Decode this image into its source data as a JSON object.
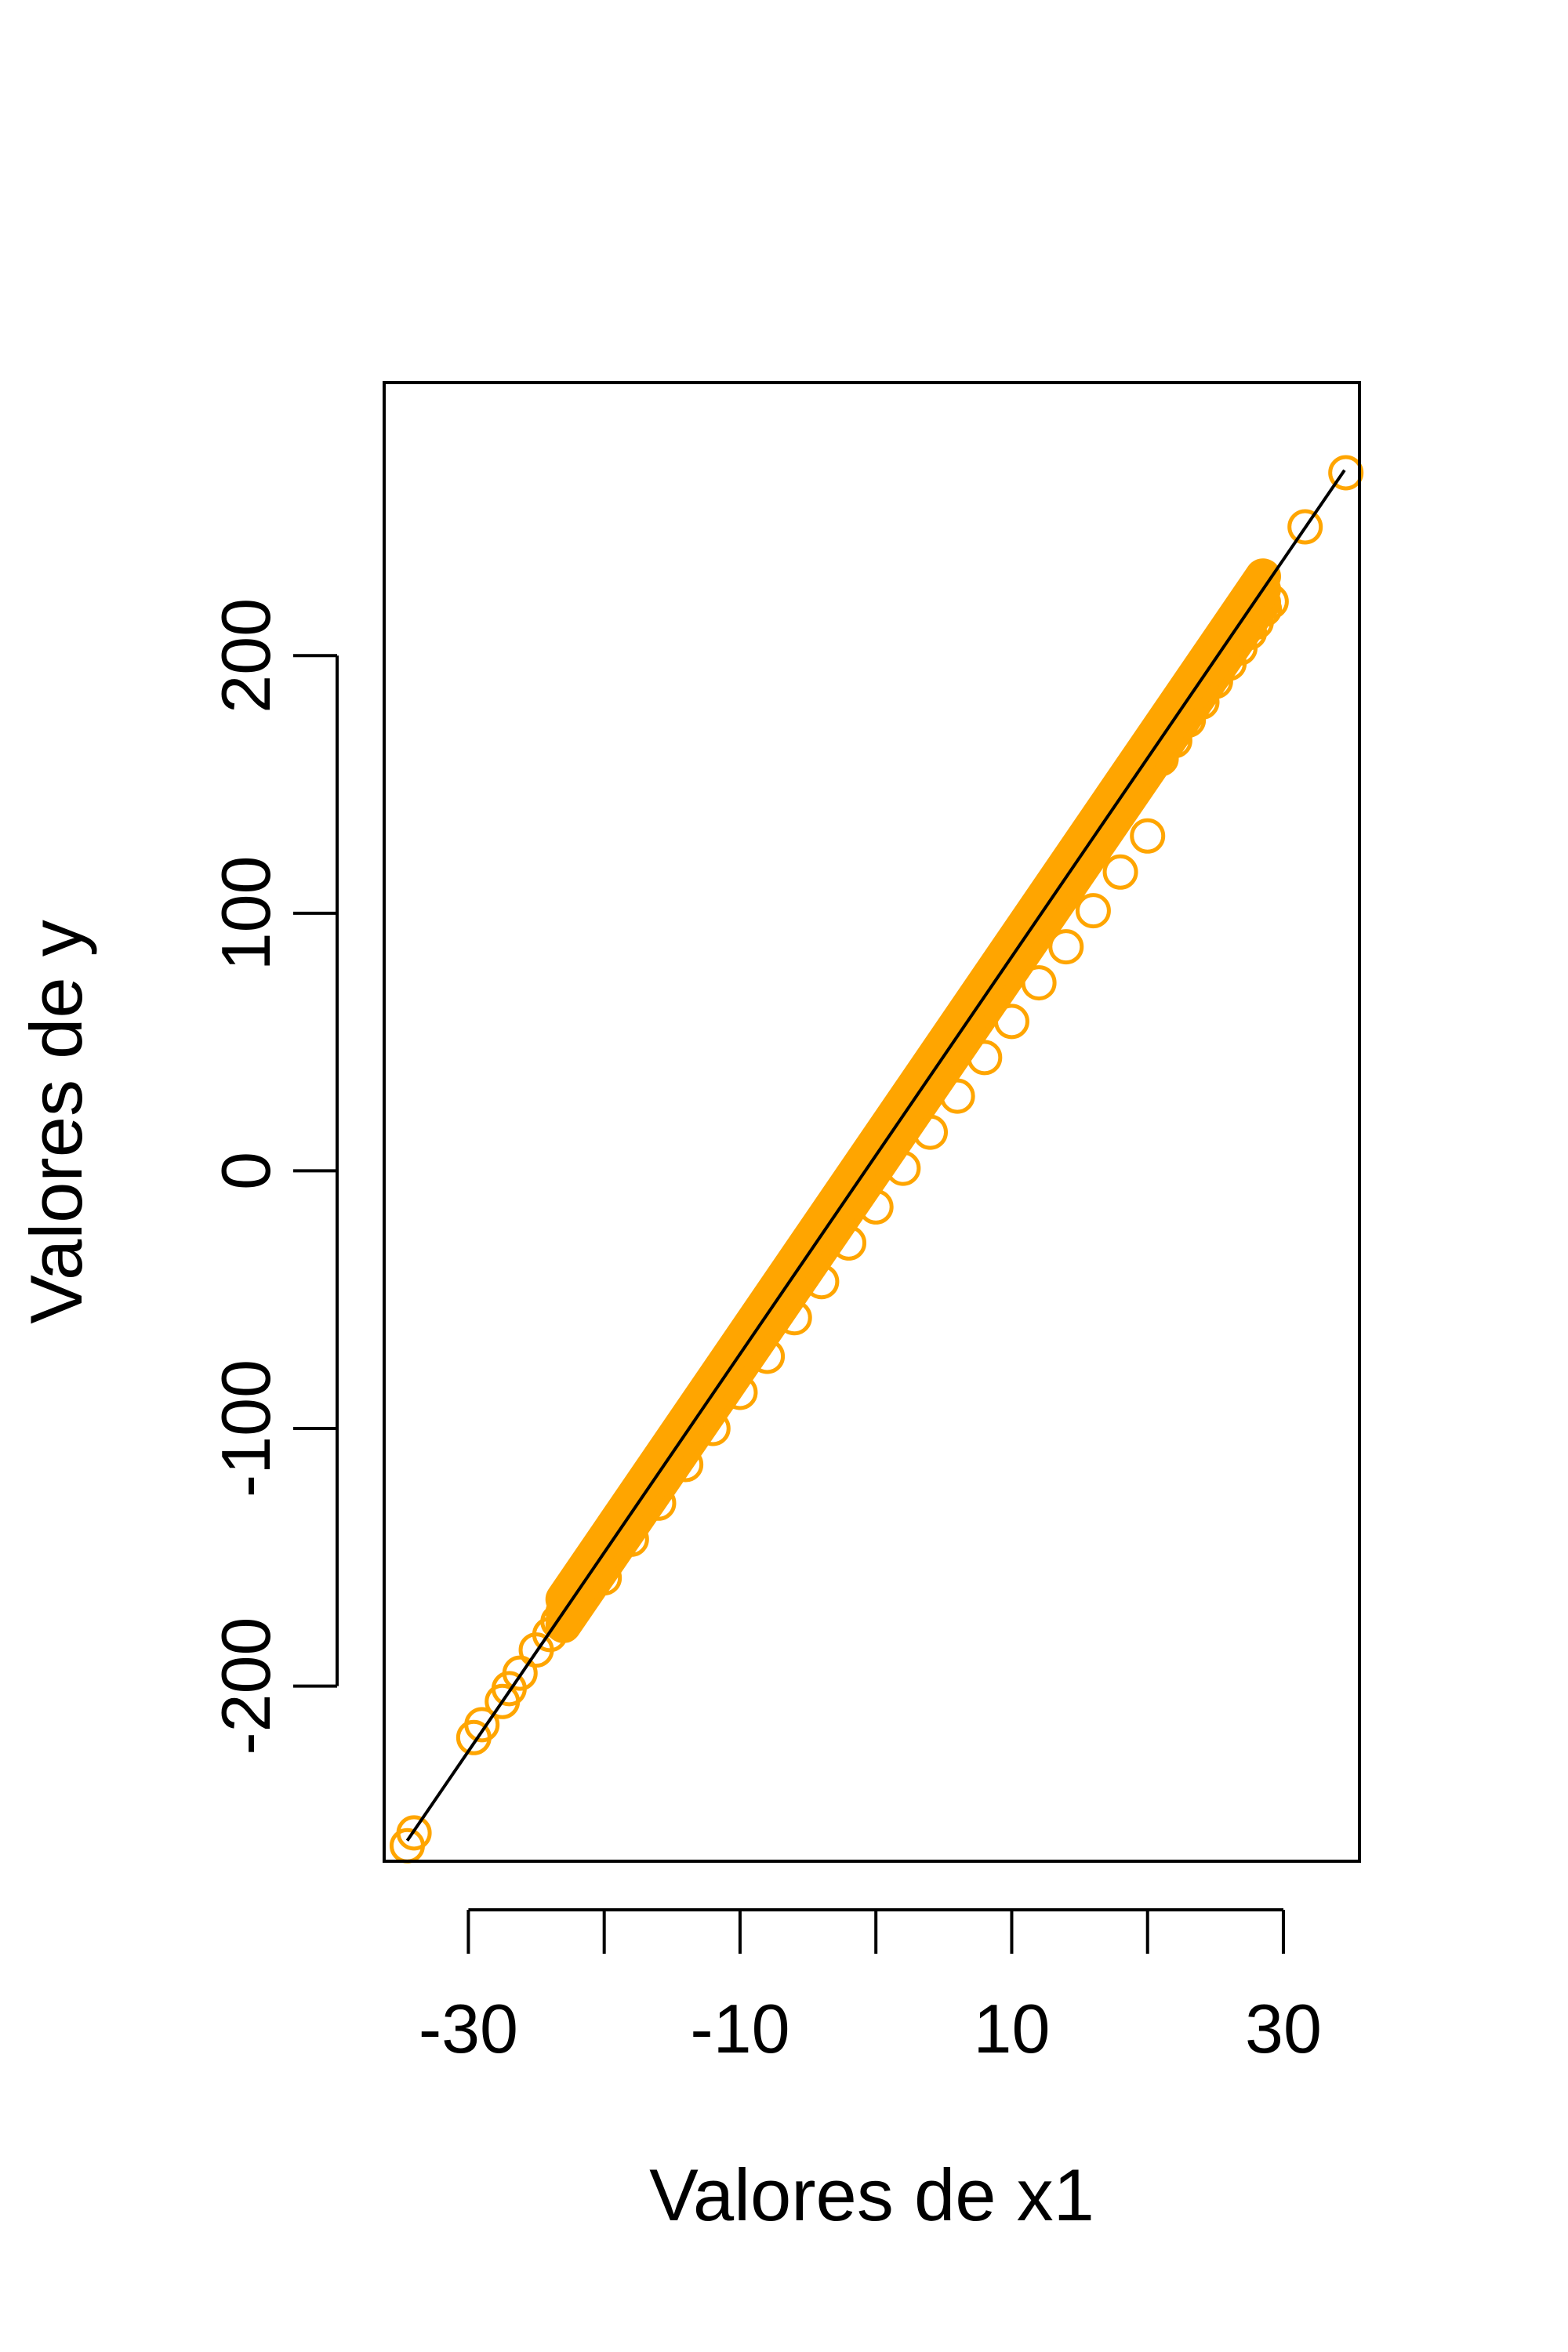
{
  "chart_data": {
    "type": "scatter",
    "title": "",
    "xlabel": "Valores de x1",
    "ylabel": "Valores de y",
    "xlim": [
      -36.2,
      35.6
    ],
    "ylim": [
      -268,
      306
    ],
    "x_ticks": [
      -30,
      -20,
      -10,
      0,
      10,
      20,
      30
    ],
    "x_tick_labels": [
      "-30",
      "-10",
      "10",
      "30"
    ],
    "y_ticks": [
      -200,
      -100,
      0,
      100,
      200
    ],
    "y_tick_labels": [
      "-200",
      "-100",
      "0",
      "100",
      "200"
    ],
    "grid": false,
    "legend": "none",
    "point_color": "#FFA500",
    "line_color": "#000000",
    "points": [
      [
        -34.5,
        -262
      ],
      [
        -34.0,
        -257
      ],
      [
        -29.6,
        -220
      ],
      [
        -29.0,
        -215
      ],
      [
        -27.5,
        -206
      ],
      [
        -27.0,
        -201
      ],
      [
        -26.2,
        -195
      ],
      [
        -25.0,
        -186
      ],
      [
        -24.0,
        -180
      ],
      [
        -23.4,
        -175
      ],
      [
        -22.5,
        -171
      ],
      [
        -20,
        -158
      ],
      [
        -18,
        -143
      ],
      [
        -16,
        -129
      ],
      [
        -14,
        -114
      ],
      [
        -12,
        -100
      ],
      [
        -10,
        -86
      ],
      [
        -8,
        -72
      ],
      [
        -6,
        -57
      ],
      [
        -4,
        -43
      ],
      [
        -2,
        -28
      ],
      [
        0,
        -14
      ],
      [
        2,
        1
      ],
      [
        4,
        15
      ],
      [
        6,
        29
      ],
      [
        8,
        44
      ],
      [
        10,
        58
      ],
      [
        12,
        73
      ],
      [
        14,
        87
      ],
      [
        16,
        101
      ],
      [
        18,
        116
      ],
      [
        20,
        130
      ],
      [
        21,
        160
      ],
      [
        22,
        167
      ],
      [
        23,
        175
      ],
      [
        24,
        182
      ],
      [
        25,
        190
      ],
      [
        26,
        197
      ],
      [
        26.8,
        203
      ],
      [
        27.5,
        209
      ],
      [
        28.0,
        213
      ],
      [
        28.6,
        218
      ],
      [
        29.1,
        221
      ],
      [
        31.6,
        250
      ],
      [
        34.6,
        271
      ]
    ],
    "fit_line": {
      "x": [
        -34.5,
        34.5
      ],
      "y": [
        -260,
        272
      ]
    }
  }
}
